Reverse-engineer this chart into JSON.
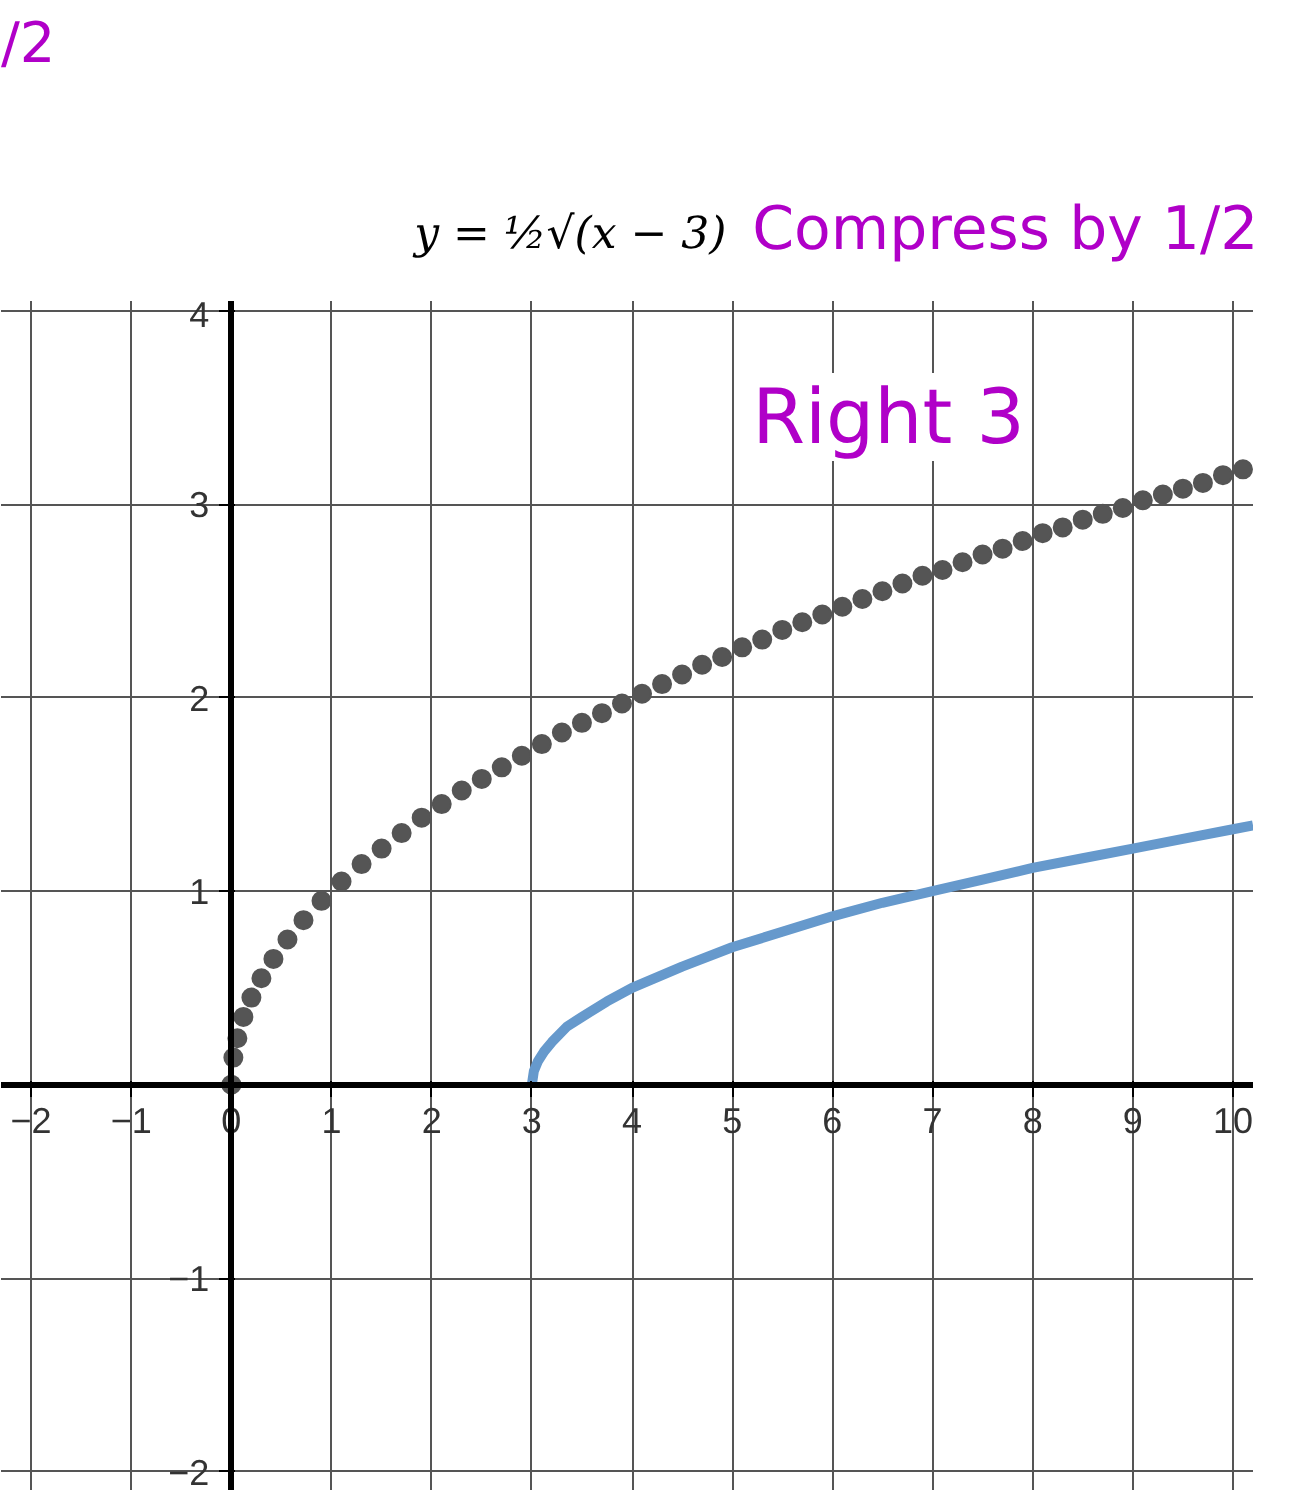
{
  "chart_data": {
    "type": "line",
    "title": "y = ½√(x − 3)",
    "annotations": [
      "/2",
      "Compress by 1/2",
      "Right 3"
    ],
    "series": [
      {
        "type": "scatter",
        "marker": "circle",
        "color": "#555555",
        "x": [
          0,
          0.02,
          0.06,
          0.12,
          0.2,
          0.3,
          0.42,
          0.56,
          0.72,
          0.9,
          1.1,
          1.3,
          1.5,
          1.7,
          1.9,
          2.1,
          2.3,
          2.5,
          2.7,
          2.9,
          3.1,
          3.3,
          3.5,
          3.7,
          3.9,
          4.1,
          4.3,
          4.5,
          4.7,
          4.9,
          5.1,
          5.3,
          5.5,
          5.7,
          5.9,
          6.1,
          6.3,
          6.5,
          6.7,
          6.9,
          7.1,
          7.3,
          7.5,
          7.7,
          7.9,
          8.1,
          8.3,
          8.5,
          8.7,
          8.9,
          9.1,
          9.3,
          9.5,
          9.7,
          9.9,
          10.1
        ],
        "values": [
          0,
          0.14,
          0.24,
          0.35,
          0.45,
          0.55,
          0.65,
          0.75,
          0.85,
          0.95,
          1.05,
          1.14,
          1.22,
          1.3,
          1.38,
          1.45,
          1.52,
          1.58,
          1.64,
          1.7,
          1.76,
          1.82,
          1.87,
          1.92,
          1.97,
          2.02,
          2.07,
          2.12,
          2.17,
          2.21,
          2.26,
          2.3,
          2.35,
          2.39,
          2.43,
          2.47,
          2.51,
          2.55,
          2.59,
          2.63,
          2.66,
          2.7,
          2.74,
          2.77,
          2.81,
          2.85,
          2.88,
          2.92,
          2.95,
          2.98,
          3.02,
          3.05,
          3.08,
          3.11,
          3.15,
          3.18
        ]
      },
      {
        "color": "#6699cc",
        "x": [
          3,
          3.02,
          3.06,
          3.12,
          3.2,
          3.35,
          3.5,
          3.75,
          4,
          4.5,
          5,
          5.5,
          6,
          6.5,
          7,
          7.5,
          8,
          8.5,
          9,
          9.5,
          10,
          10.2
        ],
        "values": [
          0,
          0.07,
          0.12,
          0.17,
          0.22,
          0.3,
          0.35,
          0.43,
          0.5,
          0.61,
          0.71,
          0.79,
          0.87,
          0.94,
          1,
          1.06,
          1.12,
          1.17,
          1.22,
          1.27,
          1.32,
          1.34
        ]
      }
    ],
    "xlim": [
      -2.3,
      10.2
    ],
    "ylim": [
      -2.1,
      4.05
    ],
    "xticks": [
      -2,
      -1,
      0,
      1,
      2,
      3,
      4,
      5,
      6,
      7,
      8,
      9,
      10
    ],
    "yticks": [
      -2,
      -1,
      1,
      2,
      3,
      4
    ],
    "grid": true,
    "line_style": "solid"
  }
}
